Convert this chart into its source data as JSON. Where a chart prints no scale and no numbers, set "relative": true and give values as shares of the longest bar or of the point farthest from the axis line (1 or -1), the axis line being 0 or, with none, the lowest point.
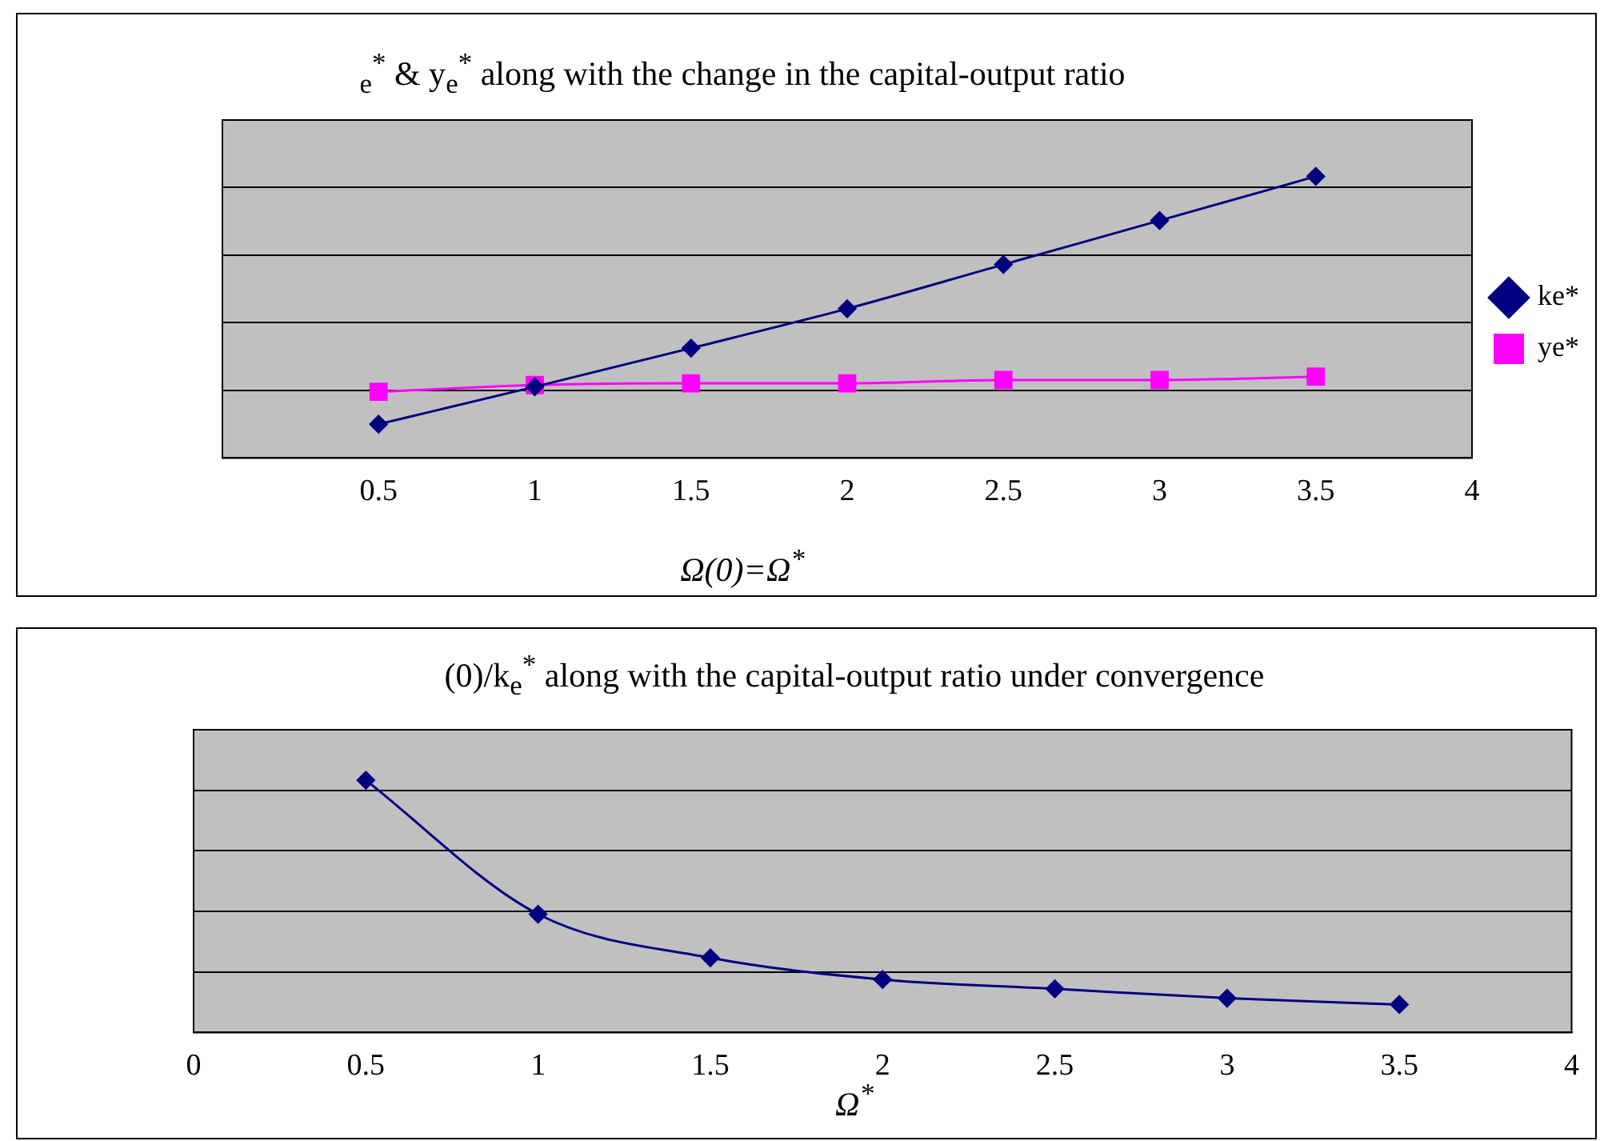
{
  "chart_data": [
    {
      "type": "line",
      "title": "$_{e}$$^{*}$ & y$_{e}$$^{*}$ along with the change in the capital-output ratio",
      "xlabel": "Ω(0)=Ω$^{*}$",
      "relative": true,
      "x": [
        0.5,
        1,
        1.5,
        2,
        2.5,
        3,
        3.5
      ],
      "xlim": [
        0,
        4
      ],
      "xticks": [
        0.5,
        1,
        1.5,
        2,
        2.5,
        3,
        3.5,
        4
      ],
      "series": [
        {
          "name": "ke*",
          "color": "#000080",
          "marker": "diamond",
          "values": [
            0.12,
            0.253,
            0.39,
            0.53,
            0.687,
            0.843,
            1
          ]
        },
        {
          "name": "ye*",
          "color": "#ff00ff",
          "marker": "square",
          "values": [
            0.235,
            0.259,
            0.265,
            0.265,
            0.277,
            0.277,
            0.289
          ]
        }
      ],
      "grid": "y",
      "legend": "right"
    },
    {
      "type": "line",
      "title": "(0)/k$_{e}$$^{*}$ along with the capital-output ratio under convergence",
      "xlabel": "Ω$^{*}$",
      "relative": true,
      "x": [
        0.5,
        1,
        1.5,
        2,
        2.5,
        3,
        3.5
      ],
      "xlim": [
        0,
        4
      ],
      "xticks": [
        0,
        0.5,
        1,
        1.5,
        2,
        2.5,
        3,
        3.5,
        4
      ],
      "series": [
        {
          "color": "#000080",
          "marker": "diamond",
          "values": [
            1,
            0.469,
            0.296,
            0.21,
            0.173,
            0.136,
            0.111
          ]
        }
      ],
      "grid": "y",
      "legend": false
    }
  ]
}
